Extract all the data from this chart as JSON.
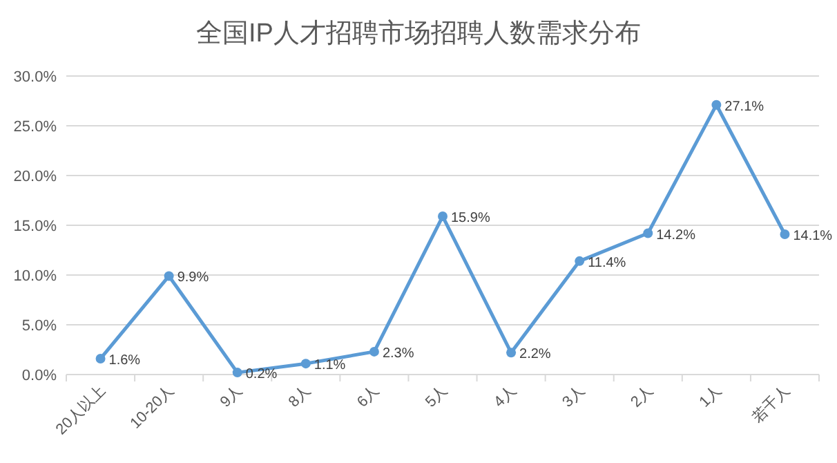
{
  "chart_data": {
    "type": "line",
    "title": "全国IP人才招聘市场招聘人数需求分布",
    "categories": [
      "20人以上",
      "10-20人",
      "9人",
      "8人",
      "6人",
      "5人",
      "4人",
      "3人",
      "2人",
      "1人",
      "若干人"
    ],
    "series": [
      {
        "color": "#5b9bd5",
        "values": [
          1.6,
          9.9,
          0.2,
          1.1,
          2.3,
          15.9,
          2.2,
          11.4,
          14.2,
          27.1,
          14.1
        ],
        "value_labels": [
          "1.6%",
          "9.9%",
          "0.2%",
          "1.1%",
          "2.3%",
          "15.9%",
          "2.2%",
          "11.4%",
          "14.2%",
          "27.1%",
          "14.1%"
        ]
      }
    ],
    "ylim": [
      0,
      30
    ],
    "yticks": [
      {
        "value": 0,
        "label": "0.0%"
      },
      {
        "value": 5,
        "label": "5.0%"
      },
      {
        "value": 10,
        "label": "10.0%"
      },
      {
        "value": 15,
        "label": "15.0%"
      },
      {
        "value": 20,
        "label": "20.0%"
      },
      {
        "value": 25,
        "label": "25.0%"
      },
      {
        "value": 30,
        "label": "30.0%"
      }
    ],
    "grid": "y",
    "marker": "circle",
    "line_style": "solid"
  }
}
